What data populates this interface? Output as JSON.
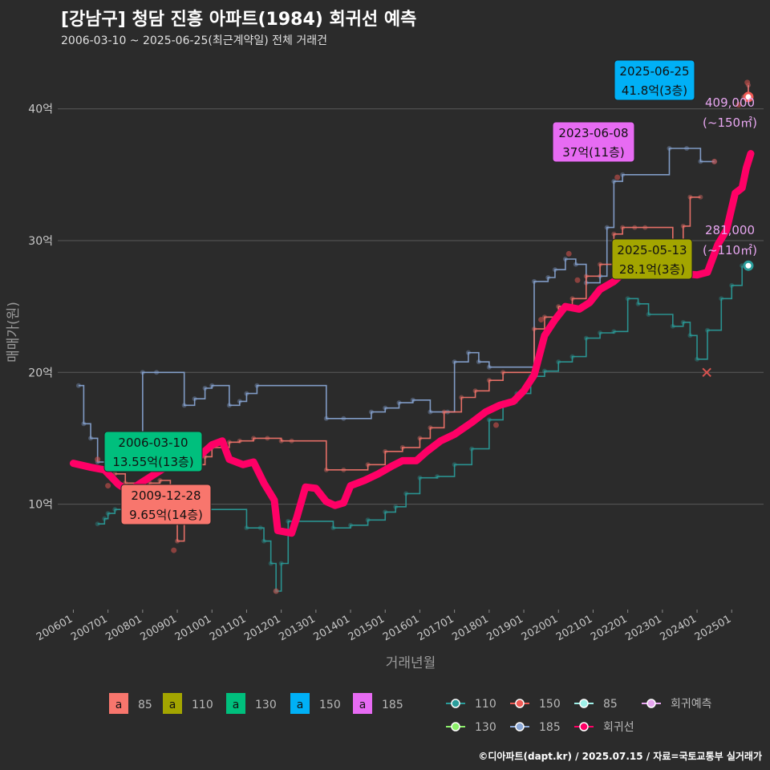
{
  "title": "[강남구] 청담 진흥 아파트(1984) 회귀선 예측",
  "subtitle": "2006-03-10 ~ 2025-06-25(최근계약일) 전체 거래건",
  "credit": "©디아파트(dapt.kr) / 2025.07.15 / 자료=국토교통부 실거래가",
  "chart_data": {
    "type": "line",
    "xlabel": "거래년월",
    "ylabel": "매매가(원)",
    "x_tick_labels": [
      "200601",
      "200701",
      "200801",
      "200901",
      "201001",
      "201101",
      "201201",
      "201301",
      "201401",
      "201501",
      "201601",
      "201701",
      "201801",
      "201901",
      "202001",
      "202101",
      "202201",
      "202301",
      "202401",
      "202501"
    ],
    "y_ticks": [
      {
        "value": 10,
        "label": "10억"
      },
      {
        "value": 20,
        "label": "20억"
      },
      {
        "value": 30,
        "label": "30억"
      },
      {
        "value": 40,
        "label": "40억"
      }
    ],
    "ylim": [
      2,
      44
    ],
    "xlim": [
      2005.55,
      2025.92
    ],
    "colors": {
      "85": "#f8766d",
      "110": "#a3a500",
      "130": "#00bf7d",
      "150": "#00b0f6",
      "185": "#e76bf3",
      "line110": "#2a9d9b",
      "line185": "#8aa7d6",
      "regression": "#ff0066",
      "forecast_text": "#e7a6f0"
    },
    "series": [
      {
        "name": "110",
        "color": "#2a9d9b",
        "points": [
          [
            2006.7,
            8.5
          ],
          [
            2006.9,
            8.9
          ],
          [
            2007.0,
            9.3
          ],
          [
            2007.2,
            9.6
          ],
          [
            2011.0,
            8.2
          ],
          [
            2011.4,
            8.2
          ],
          [
            2011.5,
            7.2
          ],
          [
            2011.7,
            5.5
          ],
          [
            2011.85,
            3.4
          ],
          [
            2012.0,
            5.5
          ],
          [
            2012.2,
            8.7
          ],
          [
            2013.5,
            8.2
          ],
          [
            2014.0,
            8.4
          ],
          [
            2014.5,
            8.8
          ],
          [
            2015.0,
            9.4
          ],
          [
            2015.3,
            9.8
          ],
          [
            2015.6,
            10.8
          ],
          [
            2016.0,
            12.0
          ],
          [
            2016.5,
            12.1
          ],
          [
            2017.0,
            13.0
          ],
          [
            2017.5,
            14.2
          ],
          [
            2018.0,
            16.4
          ],
          [
            2018.4,
            17.7
          ],
          [
            2018.8,
            18.4
          ],
          [
            2019.2,
            19.7
          ],
          [
            2019.6,
            20.1
          ],
          [
            2020.0,
            20.8
          ],
          [
            2020.4,
            21.2
          ],
          [
            2020.8,
            22.6
          ],
          [
            2021.2,
            23.0
          ],
          [
            2021.6,
            23.1
          ],
          [
            2022.0,
            25.6
          ],
          [
            2022.3,
            25.2
          ],
          [
            2022.6,
            24.4
          ],
          [
            2023.3,
            23.5
          ],
          [
            2023.6,
            23.8
          ],
          [
            2023.8,
            22.8
          ],
          [
            2024.0,
            21.0
          ],
          [
            2024.3,
            23.2
          ],
          [
            2024.7,
            25.6
          ],
          [
            2025.0,
            26.6
          ],
          [
            2025.3,
            28.1
          ]
        ]
      },
      {
        "name": "185",
        "color": "#8aa7d6",
        "points": [
          [
            2006.15,
            19.0
          ],
          [
            2006.3,
            16.1
          ],
          [
            2006.5,
            15.0
          ],
          [
            2006.7,
            13.2
          ],
          [
            2007.0,
            12.8
          ],
          [
            2008.0,
            20.0
          ],
          [
            2008.4,
            20.0
          ],
          [
            2009.2,
            17.5
          ],
          [
            2009.5,
            18.0
          ],
          [
            2009.8,
            18.8
          ],
          [
            2010.0,
            19.0
          ],
          [
            2010.5,
            17.5
          ],
          [
            2010.8,
            17.8
          ],
          [
            2011.0,
            18.4
          ],
          [
            2011.3,
            19.0
          ],
          [
            2013.3,
            16.5
          ],
          [
            2013.8,
            16.5
          ],
          [
            2014.6,
            17.0
          ],
          [
            2015.0,
            17.3
          ],
          [
            2015.4,
            17.7
          ],
          [
            2015.8,
            17.9
          ],
          [
            2016.3,
            17.0
          ],
          [
            2016.8,
            17.0
          ],
          [
            2017.0,
            20.8
          ],
          [
            2017.4,
            21.5
          ],
          [
            2017.7,
            20.8
          ],
          [
            2018.0,
            20.4
          ],
          [
            2019.3,
            26.9
          ],
          [
            2019.7,
            27.2
          ],
          [
            2019.9,
            27.8
          ],
          [
            2020.2,
            28.6
          ],
          [
            2020.5,
            28.2
          ],
          [
            2020.8,
            26.8
          ],
          [
            2021.2,
            27.3
          ],
          [
            2021.4,
            31.0
          ],
          [
            2021.6,
            34.5
          ],
          [
            2021.85,
            35.0
          ],
          [
            2023.2,
            37.0
          ],
          [
            2023.7,
            37.0
          ],
          [
            2024.1,
            36.0
          ],
          [
            2024.5,
            36.0
          ]
        ]
      },
      {
        "name": "85",
        "color": "#f8766d",
        "points": [
          [
            2009.2,
            12.7
          ],
          [
            2009.5,
            13.0
          ],
          [
            2009.8,
            13.6
          ],
          [
            2010.0,
            14.3
          ],
          [
            2010.5,
            14.7
          ],
          [
            2010.8,
            14.8
          ],
          [
            2011.2,
            15.0
          ],
          [
            2011.6,
            15.0
          ],
          [
            2012.0,
            14.8
          ],
          [
            2012.3,
            14.8
          ],
          [
            2013.3,
            12.6
          ],
          [
            2013.8,
            12.6
          ],
          [
            2014.5,
            13.0
          ],
          [
            2015.0,
            14.0
          ],
          [
            2015.5,
            14.3
          ],
          [
            2016.0,
            15.0
          ],
          [
            2016.3,
            15.8
          ],
          [
            2016.7,
            17.0
          ],
          [
            2017.2,
            18.1
          ],
          [
            2017.6,
            18.6
          ],
          [
            2018.0,
            19.4
          ],
          [
            2018.4,
            20.0
          ],
          [
            2019.3,
            23.3
          ],
          [
            2019.6,
            24.2
          ],
          [
            2020.0,
            25.0
          ],
          [
            2020.4,
            25.6
          ],
          [
            2020.8,
            27.3
          ],
          [
            2021.2,
            28.2
          ],
          [
            2021.6,
            30.5
          ],
          [
            2021.85,
            31.0
          ],
          [
            2022.2,
            31.0
          ],
          [
            2022.5,
            31.0
          ],
          [
            2023.3,
            29.2
          ],
          [
            2023.6,
            31.1
          ],
          [
            2023.8,
            33.3
          ],
          [
            2024.1,
            33.3
          ]
        ]
      },
      {
        "name": "85-early",
        "color": "#f8766d",
        "points": [
          [
            2007.2,
            12.3
          ],
          [
            2007.5,
            11.6
          ],
          [
            2007.8,
            11.3
          ],
          [
            2008.2,
            11.6
          ],
          [
            2008.5,
            11.8
          ],
          [
            2008.8,
            10.8
          ],
          [
            2008.95,
            9.65
          ],
          [
            2009.0,
            7.2
          ],
          [
            2009.2,
            11.3
          ]
        ]
      },
      {
        "name": "150",
        "color": "#ff7f7f",
        "points": [
          [
            2025.35,
            40.9
          ],
          [
            2025.48,
            41.8
          ]
        ]
      }
    ],
    "regression": {
      "name": "회귀선",
      "color": "#ff0066",
      "points": [
        [
          2006.0,
          13.1
        ],
        [
          2006.5,
          12.8
        ],
        [
          2006.9,
          12.6
        ],
        [
          2007.3,
          11.5
        ],
        [
          2007.6,
          11.0
        ],
        [
          2008.0,
          11.7
        ],
        [
          2008.6,
          12.7
        ],
        [
          2009.0,
          12.8
        ],
        [
          2009.4,
          12.8
        ],
        [
          2009.7,
          13.8
        ],
        [
          2010.0,
          14.5
        ],
        [
          2010.3,
          14.8
        ],
        [
          2010.5,
          13.4
        ],
        [
          2010.9,
          13.0
        ],
        [
          2011.2,
          13.2
        ],
        [
          2011.5,
          11.6
        ],
        [
          2011.8,
          10.3
        ],
        [
          2011.9,
          8.0
        ],
        [
          2012.3,
          7.8
        ],
        [
          2012.45,
          9.0
        ],
        [
          2012.7,
          11.3
        ],
        [
          2013.0,
          11.2
        ],
        [
          2013.3,
          10.2
        ],
        [
          2013.55,
          9.9
        ],
        [
          2013.8,
          10.1
        ],
        [
          2014.0,
          11.4
        ],
        [
          2014.4,
          11.8
        ],
        [
          2014.8,
          12.3
        ],
        [
          2015.2,
          12.9
        ],
        [
          2015.5,
          13.3
        ],
        [
          2015.9,
          13.3
        ],
        [
          2016.2,
          14.0
        ],
        [
          2016.6,
          14.8
        ],
        [
          2017.0,
          15.3
        ],
        [
          2017.5,
          16.2
        ],
        [
          2017.9,
          17.0
        ],
        [
          2018.3,
          17.5
        ],
        [
          2018.7,
          17.8
        ],
        [
          2019.0,
          18.6
        ],
        [
          2019.3,
          19.8
        ],
        [
          2019.6,
          22.8
        ],
        [
          2019.9,
          24.0
        ],
        [
          2020.2,
          25.0
        ],
        [
          2020.6,
          24.8
        ],
        [
          2020.9,
          25.3
        ],
        [
          2021.2,
          26.3
        ],
        [
          2021.6,
          26.9
        ],
        [
          2021.9,
          27.6
        ],
        [
          2022.2,
          28.0
        ],
        [
          2022.5,
          29.3
        ],
        [
          2022.7,
          28.3
        ],
        [
          2022.9,
          27.5
        ],
        [
          2023.2,
          27.6
        ],
        [
          2023.6,
          27.5
        ],
        [
          2024.0,
          27.4
        ],
        [
          2024.3,
          27.6
        ],
        [
          2024.6,
          29.7
        ],
        [
          2024.85,
          30.8
        ],
        [
          2025.1,
          33.6
        ],
        [
          2025.3,
          34.0
        ],
        [
          2025.42,
          35.5
        ],
        [
          2025.55,
          36.6
        ]
      ]
    },
    "scatter_points": [
      [
        2006.7,
        13.4
      ],
      [
        2007.0,
        11.4
      ],
      [
        2008.9,
        6.5
      ],
      [
        2011.85,
        3.4
      ],
      [
        2016.8,
        15.0
      ],
      [
        2018.2,
        16.0
      ],
      [
        2019.5,
        24.0
      ],
      [
        2020.3,
        29.0
      ],
      [
        2020.55,
        27.0
      ],
      [
        2021.7,
        34.8
      ],
      [
        2024.5,
        36.0
      ],
      [
        2025.2,
        40.3
      ],
      [
        2025.45,
        42.0
      ]
    ],
    "cross_marker": {
      "x": 2024.28,
      "y": 20.0
    },
    "labels": [
      {
        "date": "2025-06-25",
        "value": "41.8억(3층)",
        "fill": "#00b0f6",
        "x": 2025.48,
        "y": 41.8
      },
      {
        "date": "2023-06-08",
        "value": "37억(11층)",
        "fill": "#e76bf3",
        "x": 2023.44,
        "y": 37.0
      },
      {
        "date": "2025-05-13",
        "value": "28.1억(3층)",
        "fill": "#a3a500",
        "x": 2025.36,
        "y": 28.1
      },
      {
        "date": "2006-03-10",
        "value": "13.55억(13층)",
        "fill": "#00bf7d",
        "x": 2006.2,
        "y": 13.55
      },
      {
        "date": "2009-12-28",
        "value": "9.65억(14층)",
        "fill": "#f8766d",
        "x": 2008.95,
        "y": 9.65
      }
    ],
    "forecasts": [
      {
        "price": "409,000",
        "area": "(~150㎡)"
      },
      {
        "price": "281,000",
        "area": "(~110㎡)"
      }
    ],
    "legend_fill": [
      {
        "symbol": "a",
        "name": "85",
        "color": "#f8766d"
      },
      {
        "symbol": "a",
        "name": "110",
        "color": "#a3a500"
      },
      {
        "symbol": "a",
        "name": "130",
        "color": "#00bf7d"
      },
      {
        "symbol": "a",
        "name": "150",
        "color": "#00b0f6"
      },
      {
        "symbol": "a",
        "name": "185",
        "color": "#e76bf3"
      }
    ],
    "legend_line": [
      {
        "name": "110",
        "color": "#2a9d9b"
      },
      {
        "name": "150",
        "color": "#ef5a55"
      },
      {
        "name": "85",
        "color": "#9ff0e8"
      },
      {
        "name": "회귀예측",
        "color": "#e7a6f0"
      },
      {
        "name": "130",
        "color": "#8cf06a"
      },
      {
        "name": "185",
        "color": "#8aa7d6"
      },
      {
        "name": "회귀선",
        "color": "#ff0066"
      }
    ]
  }
}
